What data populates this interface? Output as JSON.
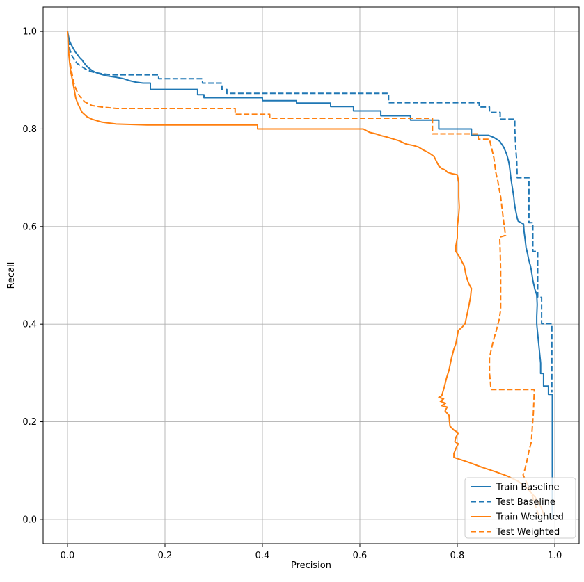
{
  "figure": {
    "background": "#ffffff",
    "xlabel": "Precision",
    "ylabel": "Recall"
  },
  "colors": {
    "baseline": "#1f77b4",
    "weighted": "#ff7f0e",
    "grid": "#b0b0b0",
    "spine": "#000000",
    "legend_border": "#cccccc"
  },
  "chart_data": {
    "type": "line",
    "title": "",
    "xlabel": "Precision",
    "ylabel": "Recall",
    "xlim": [
      -0.05,
      1.05
    ],
    "ylim": [
      -0.05,
      1.05
    ],
    "grid": true,
    "legend_position": "lower right",
    "xticks": {
      "values": [
        0.0,
        0.2,
        0.4,
        0.6,
        0.8,
        1.0
      ],
      "labels": [
        "0.0",
        "0.2",
        "0.4",
        "0.6",
        "0.8",
        "1.0"
      ]
    },
    "yticks": {
      "values": [
        0.0,
        0.2,
        0.4,
        0.6,
        0.8,
        1.0
      ],
      "labels": [
        "0.0",
        "0.2",
        "0.4",
        "0.6",
        "0.8",
        "1.0"
      ]
    },
    "series": [
      {
        "name": "Train Baseline",
        "color": "#1f77b4",
        "style": "solid",
        "points": [
          [
            0.0,
            1.0
          ],
          [
            0.002,
            0.99
          ],
          [
            0.004,
            0.981
          ],
          [
            0.007,
            0.974
          ],
          [
            0.012,
            0.965
          ],
          [
            0.016,
            0.958
          ],
          [
            0.02,
            0.953
          ],
          [
            0.025,
            0.946
          ],
          [
            0.03,
            0.941
          ],
          [
            0.035,
            0.934
          ],
          [
            0.041,
            0.927
          ],
          [
            0.05,
            0.92
          ],
          [
            0.057,
            0.916
          ],
          [
            0.065,
            0.913
          ],
          [
            0.08,
            0.909
          ],
          [
            0.1,
            0.906
          ],
          [
            0.115,
            0.903
          ],
          [
            0.127,
            0.899
          ],
          [
            0.14,
            0.896
          ],
          [
            0.155,
            0.894
          ],
          [
            0.17,
            0.894
          ],
          [
            0.17,
            0.881
          ],
          [
            0.267,
            0.881
          ],
          [
            0.267,
            0.87
          ],
          [
            0.28,
            0.87
          ],
          [
            0.28,
            0.864
          ],
          [
            0.4,
            0.864
          ],
          [
            0.4,
            0.858
          ],
          [
            0.47,
            0.858
          ],
          [
            0.47,
            0.853
          ],
          [
            0.54,
            0.853
          ],
          [
            0.54,
            0.846
          ],
          [
            0.587,
            0.846
          ],
          [
            0.587,
            0.837
          ],
          [
            0.643,
            0.837
          ],
          [
            0.643,
            0.827
          ],
          [
            0.704,
            0.827
          ],
          [
            0.704,
            0.818
          ],
          [
            0.762,
            0.818
          ],
          [
            0.762,
            0.8
          ],
          [
            0.829,
            0.8
          ],
          [
            0.829,
            0.787
          ],
          [
            0.864,
            0.787
          ],
          [
            0.876,
            0.782
          ],
          [
            0.887,
            0.775
          ],
          [
            0.895,
            0.763
          ],
          [
            0.901,
            0.749
          ],
          [
            0.905,
            0.735
          ],
          [
            0.907,
            0.724
          ],
          [
            0.91,
            0.699
          ],
          [
            0.912,
            0.686
          ],
          [
            0.914,
            0.673
          ],
          [
            0.916,
            0.66
          ],
          [
            0.917,
            0.649
          ],
          [
            0.919,
            0.637
          ],
          [
            0.921,
            0.627
          ],
          [
            0.923,
            0.617
          ],
          [
            0.925,
            0.611
          ],
          [
            0.936,
            0.605
          ],
          [
            0.937,
            0.59
          ],
          [
            0.939,
            0.575
          ],
          [
            0.941,
            0.558
          ],
          [
            0.944,
            0.545
          ],
          [
            0.947,
            0.53
          ],
          [
            0.95,
            0.52
          ],
          [
            0.952,
            0.51
          ],
          [
            0.955,
            0.49
          ],
          [
            0.959,
            0.472
          ],
          [
            0.963,
            0.46
          ],
          [
            0.964,
            0.44
          ],
          [
            0.963,
            0.416
          ],
          [
            0.963,
            0.4
          ],
          [
            0.966,
            0.37
          ],
          [
            0.969,
            0.34
          ],
          [
            0.971,
            0.32
          ],
          [
            0.971,
            0.299
          ],
          [
            0.977,
            0.299
          ],
          [
            0.977,
            0.273
          ],
          [
            0.987,
            0.273
          ],
          [
            0.987,
            0.256
          ],
          [
            0.995,
            0.256
          ],
          [
            0.995,
            0.0
          ]
        ]
      },
      {
        "name": "Test Baseline",
        "color": "#1f77b4",
        "style": "dashed",
        "points": [
          [
            0.0,
            1.0
          ],
          [
            0.002,
            0.98
          ],
          [
            0.005,
            0.962
          ],
          [
            0.01,
            0.948
          ],
          [
            0.02,
            0.934
          ],
          [
            0.03,
            0.927
          ],
          [
            0.04,
            0.921
          ],
          [
            0.05,
            0.917
          ],
          [
            0.07,
            0.913
          ],
          [
            0.09,
            0.911
          ],
          [
            0.187,
            0.911
          ],
          [
            0.187,
            0.903
          ],
          [
            0.277,
            0.903
          ],
          [
            0.277,
            0.894
          ],
          [
            0.317,
            0.894
          ],
          [
            0.317,
            0.881
          ],
          [
            0.327,
            0.881
          ],
          [
            0.327,
            0.873
          ],
          [
            0.659,
            0.873
          ],
          [
            0.659,
            0.854
          ],
          [
            0.845,
            0.854
          ],
          [
            0.845,
            0.845
          ],
          [
            0.866,
            0.845
          ],
          [
            0.866,
            0.834
          ],
          [
            0.888,
            0.834
          ],
          [
            0.888,
            0.82
          ],
          [
            0.918,
            0.82
          ],
          [
            0.918,
            0.8
          ],
          [
            0.92,
            0.76
          ],
          [
            0.922,
            0.734
          ],
          [
            0.923,
            0.7
          ],
          [
            0.947,
            0.7
          ],
          [
            0.947,
            0.66
          ],
          [
            0.947,
            0.608
          ],
          [
            0.955,
            0.608
          ],
          [
            0.955,
            0.549
          ],
          [
            0.965,
            0.549
          ],
          [
            0.965,
            0.487
          ],
          [
            0.965,
            0.455
          ],
          [
            0.973,
            0.455
          ],
          [
            0.973,
            0.401
          ],
          [
            0.994,
            0.401
          ],
          [
            0.994,
            0.26
          ]
        ]
      },
      {
        "name": "Train Weighted",
        "color": "#ff7f0e",
        "style": "solid",
        "points": [
          [
            0.0,
            1.0
          ],
          [
            0.001,
            0.98
          ],
          [
            0.002,
            0.965
          ],
          [
            0.003,
            0.95
          ],
          [
            0.005,
            0.93
          ],
          [
            0.007,
            0.915
          ],
          [
            0.01,
            0.901
          ],
          [
            0.013,
            0.885
          ],
          [
            0.017,
            0.863
          ],
          [
            0.022,
            0.85
          ],
          [
            0.03,
            0.834
          ],
          [
            0.04,
            0.825
          ],
          [
            0.05,
            0.82
          ],
          [
            0.07,
            0.814
          ],
          [
            0.1,
            0.81
          ],
          [
            0.163,
            0.808
          ],
          [
            0.39,
            0.808
          ],
          [
            0.39,
            0.8
          ],
          [
            0.607,
            0.8
          ],
          [
            0.62,
            0.793
          ],
          [
            0.633,
            0.79
          ],
          [
            0.645,
            0.786
          ],
          [
            0.657,
            0.783
          ],
          [
            0.67,
            0.779
          ],
          [
            0.68,
            0.776
          ],
          [
            0.695,
            0.769
          ],
          [
            0.71,
            0.766
          ],
          [
            0.72,
            0.763
          ],
          [
            0.73,
            0.757
          ],
          [
            0.74,
            0.752
          ],
          [
            0.752,
            0.744
          ],
          [
            0.757,
            0.734
          ],
          [
            0.762,
            0.724
          ],
          [
            0.768,
            0.719
          ],
          [
            0.775,
            0.716
          ],
          [
            0.78,
            0.711
          ],
          [
            0.79,
            0.708
          ],
          [
            0.8,
            0.706
          ],
          [
            0.803,
            0.69
          ],
          [
            0.803,
            0.66
          ],
          [
            0.804,
            0.64
          ],
          [
            0.803,
            0.625
          ],
          [
            0.8,
            0.6
          ],
          [
            0.8,
            0.577
          ],
          [
            0.797,
            0.56
          ],
          [
            0.797,
            0.549
          ],
          [
            0.807,
            0.534
          ],
          [
            0.81,
            0.527
          ],
          [
            0.814,
            0.52
          ],
          [
            0.818,
            0.5
          ],
          [
            0.822,
            0.487
          ],
          [
            0.826,
            0.478
          ],
          [
            0.829,
            0.473
          ],
          [
            0.827,
            0.455
          ],
          [
            0.824,
            0.439
          ],
          [
            0.82,
            0.42
          ],
          [
            0.816,
            0.401
          ],
          [
            0.81,
            0.394
          ],
          [
            0.802,
            0.387
          ],
          [
            0.797,
            0.36
          ],
          [
            0.793,
            0.349
          ],
          [
            0.788,
            0.33
          ],
          [
            0.783,
            0.306
          ],
          [
            0.778,
            0.29
          ],
          [
            0.773,
            0.27
          ],
          [
            0.768,
            0.253
          ],
          [
            0.762,
            0.25
          ],
          [
            0.772,
            0.247
          ],
          [
            0.765,
            0.242
          ],
          [
            0.776,
            0.238
          ],
          [
            0.768,
            0.233
          ],
          [
            0.779,
            0.23
          ],
          [
            0.775,
            0.222
          ],
          [
            0.783,
            0.213
          ],
          [
            0.784,
            0.2
          ],
          [
            0.785,
            0.191
          ],
          [
            0.793,
            0.183
          ],
          [
            0.798,
            0.18
          ],
          [
            0.802,
            0.177
          ],
          [
            0.797,
            0.168
          ],
          [
            0.795,
            0.159
          ],
          [
            0.802,
            0.155
          ],
          [
            0.797,
            0.145
          ],
          [
            0.793,
            0.135
          ],
          [
            0.793,
            0.127
          ],
          [
            0.82,
            0.118
          ],
          [
            0.85,
            0.107
          ],
          [
            0.88,
            0.097
          ],
          [
            0.902,
            0.089
          ],
          [
            0.925,
            0.078
          ],
          [
            0.945,
            0.062
          ],
          [
            0.96,
            0.045
          ],
          [
            0.972,
            0.025
          ],
          [
            0.978,
            0.008
          ]
        ]
      },
      {
        "name": "Test Weighted",
        "color": "#ff7f0e",
        "style": "dashed",
        "points": [
          [
            0.0,
            1.0
          ],
          [
            0.001,
            0.98
          ],
          [
            0.002,
            0.962
          ],
          [
            0.004,
            0.945
          ],
          [
            0.008,
            0.92
          ],
          [
            0.013,
            0.894
          ],
          [
            0.018,
            0.88
          ],
          [
            0.025,
            0.867
          ],
          [
            0.035,
            0.856
          ],
          [
            0.05,
            0.848
          ],
          [
            0.07,
            0.845
          ],
          [
            0.1,
            0.842
          ],
          [
            0.344,
            0.842
          ],
          [
            0.344,
            0.83
          ],
          [
            0.415,
            0.83
          ],
          [
            0.415,
            0.822
          ],
          [
            0.749,
            0.822
          ],
          [
            0.749,
            0.79
          ],
          [
            0.843,
            0.79
          ],
          [
            0.843,
            0.779
          ],
          [
            0.866,
            0.779
          ],
          [
            0.869,
            0.766
          ],
          [
            0.872,
            0.754
          ],
          [
            0.875,
            0.741
          ],
          [
            0.877,
            0.726
          ],
          [
            0.879,
            0.711
          ],
          [
            0.883,
            0.694
          ],
          [
            0.886,
            0.677
          ],
          [
            0.889,
            0.661
          ],
          [
            0.891,
            0.644
          ],
          [
            0.893,
            0.628
          ],
          [
            0.895,
            0.611
          ],
          [
            0.897,
            0.596
          ],
          [
            0.899,
            0.582
          ],
          [
            0.887,
            0.578
          ],
          [
            0.888,
            0.55
          ],
          [
            0.889,
            0.51
          ],
          [
            0.889,
            0.47
          ],
          [
            0.889,
            0.43
          ],
          [
            0.886,
            0.41
          ],
          [
            0.88,
            0.387
          ],
          [
            0.875,
            0.37
          ],
          [
            0.87,
            0.35
          ],
          [
            0.866,
            0.33
          ],
          [
            0.866,
            0.3
          ],
          [
            0.868,
            0.28
          ],
          [
            0.869,
            0.266
          ],
          [
            0.958,
            0.266
          ],
          [
            0.957,
            0.24
          ],
          [
            0.956,
            0.216
          ],
          [
            0.954,
            0.19
          ],
          [
            0.952,
            0.159
          ],
          [
            0.947,
            0.14
          ],
          [
            0.942,
            0.116
          ],
          [
            0.938,
            0.1
          ],
          [
            0.935,
            0.091
          ],
          [
            0.945,
            0.07
          ],
          [
            0.955,
            0.045
          ],
          [
            0.963,
            0.02
          ],
          [
            0.968,
            0.003
          ]
        ]
      }
    ]
  },
  "legend": {
    "entries": [
      "Train Baseline",
      "Test Baseline",
      "Train Weighted",
      "Test Weighted"
    ]
  }
}
